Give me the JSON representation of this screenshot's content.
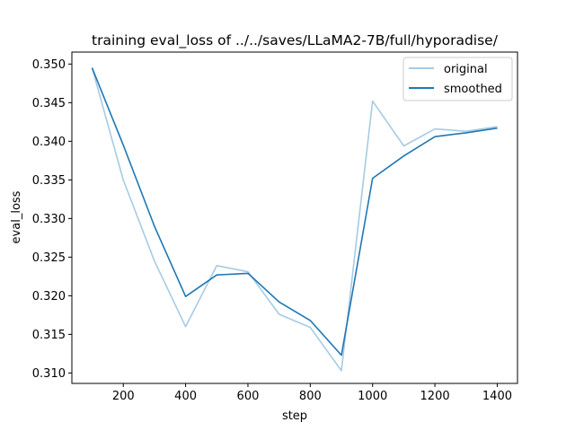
{
  "chart_data": {
    "type": "line",
    "title": "training eval_loss of ../../saves/LLaMA2-7B/full/hyporadise/",
    "xlabel": "step",
    "ylabel": "eval_loss",
    "x": [
      100,
      200,
      300,
      400,
      500,
      600,
      700,
      800,
      900,
      1000,
      1100,
      1200,
      1300,
      1400
    ],
    "series": [
      {
        "name": "original",
        "color": "#a6cbe3",
        "values": [
          0.3495,
          0.335,
          0.3245,
          0.316,
          0.3239,
          0.3231,
          0.3176,
          0.3159,
          0.3103,
          0.3452,
          0.3394,
          0.3416,
          0.3413,
          0.3419
        ]
      },
      {
        "name": "smoothed",
        "color": "#1f77b4",
        "values": [
          0.3495,
          0.3395,
          0.329,
          0.3199,
          0.3227,
          0.3229,
          0.3192,
          0.3168,
          0.3123,
          0.3352,
          0.3381,
          0.3406,
          0.3411,
          0.3417
        ]
      }
    ],
    "xticks": [
      200,
      400,
      600,
      800,
      1000,
      1200,
      1400
    ],
    "xtick_labels": [
      "200",
      "400",
      "600",
      "800",
      "1000",
      "1200",
      "1400"
    ],
    "yticks": [
      0.31,
      0.315,
      0.32,
      0.325,
      0.33,
      0.335,
      0.34,
      0.345,
      0.35
    ],
    "ytick_labels": [
      "0.310",
      "0.315",
      "0.320",
      "0.325",
      "0.330",
      "0.335",
      "0.340",
      "0.345",
      "0.350"
    ],
    "xlim": [
      35,
      1465
    ],
    "ylim": [
      0.30865,
      0.35155
    ],
    "grid": false,
    "legend_position": "upper right"
  }
}
